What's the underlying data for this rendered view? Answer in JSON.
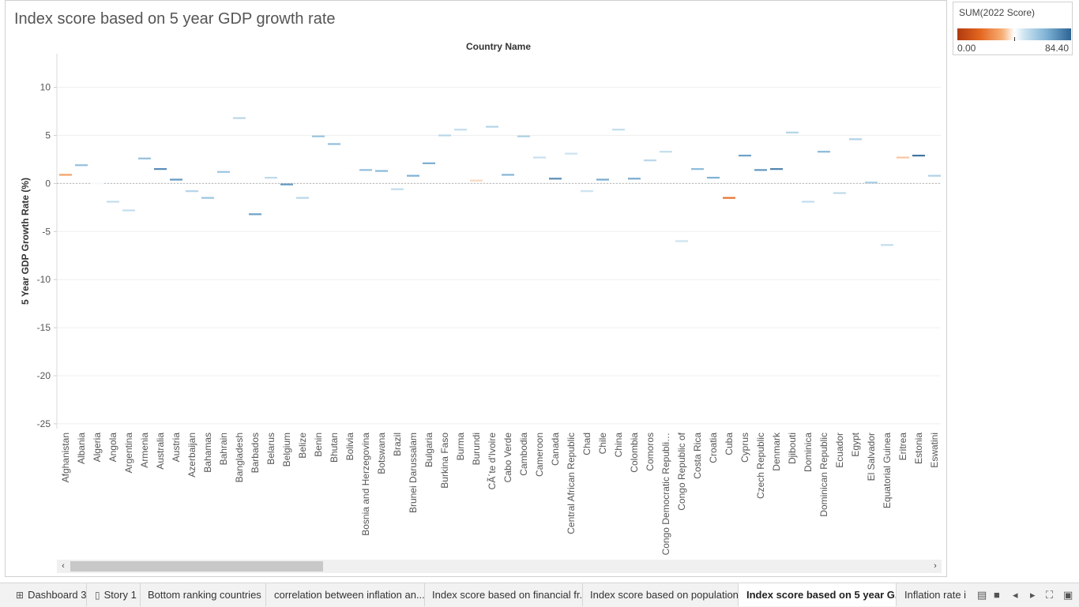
{
  "title": "Index score based on 5 year GDP growth rate",
  "legend": {
    "title": "SUM(2022 Score)",
    "min_label": "0.00",
    "max_label": "84.40"
  },
  "chart_data": {
    "type": "scatter",
    "mark": "line-tick",
    "title": "Index score based on 5 year GDP growth rate",
    "x_header": "Country Name",
    "ylabel": "5 Year GDP Growth Rate (%)",
    "ylim": [
      -25.5,
      13.5
    ],
    "yticks": [
      10,
      5,
      0,
      -5,
      -10,
      -15,
      -20,
      -25
    ],
    "ytick_labels": [
      "10",
      "5",
      "0",
      "-5",
      "-10",
      "-15",
      "-20",
      "-25"
    ],
    "zero_line": true,
    "grid": true,
    "color_field": "SUM(2022 Score)",
    "color_range": [
      0,
      84.4
    ],
    "categories": [
      "Afghanistan",
      "Albania",
      "Algeria",
      "Angola",
      "Argentina",
      "Armenia",
      "Australia",
      "Austria",
      "Azerbaijan",
      "Bahamas",
      "Bahrain",
      "Bangladesh",
      "Barbados",
      "Belarus",
      "Belgium",
      "Belize",
      "Benin",
      "Bhutan",
      "Bolivia",
      "Bosnia and Herzegovina",
      "Botswana",
      "Brazil",
      "Brunei Darussalam",
      "Bulgaria",
      "Burkina Faso",
      "Burma",
      "Burundi",
      "CÃ´te d'Ivoire",
      "Cabo Verde",
      "Cambodia",
      "Cameroon",
      "Canada",
      "Central African Republic",
      "Chad",
      "Chile",
      "China",
      "Colombia",
      "Comoros",
      "Congo Democratic Republi…",
      "Congo Republic of",
      "Costa Rica",
      "Croatia",
      "Cuba",
      "Cyprus",
      "Czech Republic",
      "Denmark",
      "Djibouti",
      "Dominica",
      "Dominican Republic",
      "Ecuador",
      "Egypt",
      "El Salvador",
      "Equatorial Guinea",
      "Eritrea",
      "Estonia",
      "Eswatini"
    ],
    "values": [
      0.9,
      1.9,
      0.0,
      -1.9,
      -2.8,
      2.6,
      1.5,
      0.4,
      -0.8,
      -1.5,
      1.2,
      6.8,
      -3.2,
      0.6,
      -0.1,
      -1.5,
      4.9,
      4.1,
      1.4,
      1.4,
      1.3,
      -0.6,
      0.8,
      2.1,
      5.0,
      5.6,
      0.3,
      5.9,
      0.9,
      4.9,
      2.7,
      0.5,
      3.1,
      -0.8,
      0.4,
      5.6,
      0.5,
      2.4,
      3.3,
      -6.0,
      1.5,
      0.6,
      -1.5,
      2.9,
      1.4,
      1.5,
      5.3,
      -1.9,
      3.3,
      -1.0,
      4.6,
      0.1,
      -6.4,
      2.7,
      2.9,
      0.8
    ],
    "scores": [
      30,
      62,
      44,
      52,
      52,
      62,
      75,
      72,
      55,
      60,
      60,
      54,
      70,
      53,
      72,
      54,
      60,
      62,
      42,
      62,
      64,
      52,
      66,
      67,
      54,
      52,
      38,
      55,
      65,
      56,
      51,
      75,
      50,
      50,
      68,
      52,
      68,
      54,
      52,
      50,
      63,
      66,
      20,
      70,
      72,
      77,
      55,
      52,
      64,
      53,
      56,
      57,
      52,
      36,
      80,
      56
    ]
  },
  "scrollbar": {
    "left_arrow": "‹",
    "right_arrow": "›"
  },
  "tabs": [
    {
      "label": "Dashboard 3",
      "icon": "⊞"
    },
    {
      "label": "Story 1",
      "icon": "▯"
    },
    {
      "label": "Bottom ranking countries"
    },
    {
      "label": "correlation between inflation an..."
    },
    {
      "label": "Index score based on financial fr..."
    },
    {
      "label": "Index score based on population"
    },
    {
      "label": "Index score based on 5 year G..."
    },
    {
      "label": "Inflation rate i"
    }
  ],
  "toolbar_icons": {
    "grid_view": "▤",
    "filmstrip_view": "■",
    "prev": "◂",
    "next": "▸",
    "fit": "⛶",
    "presentation": "▣"
  }
}
